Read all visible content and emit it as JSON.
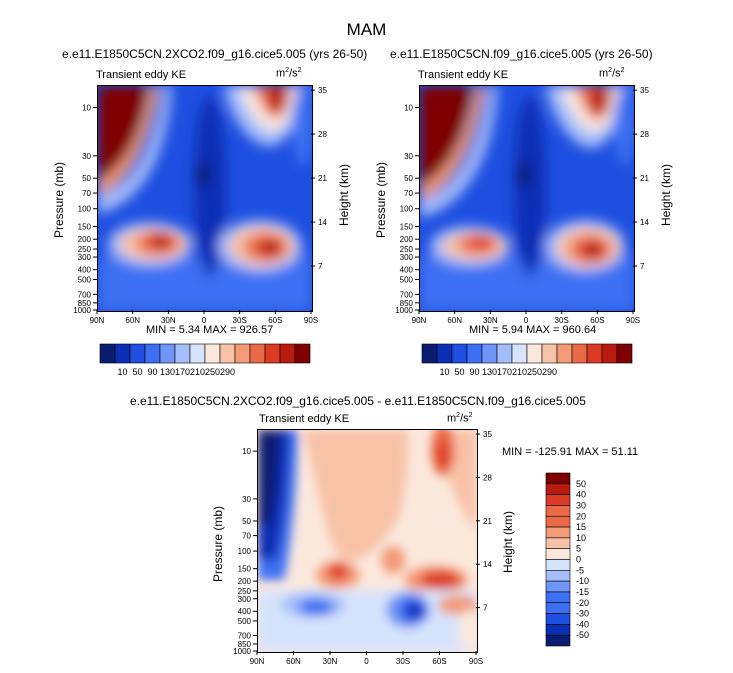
{
  "figure_title": "MAM",
  "colors": {
    "palette11": [
      "#081d6f",
      "#0a2fb5",
      "#1e4fe0",
      "#3c6ff2",
      "#6e95f7",
      "#a5bdfa",
      "#d6e3fc",
      "#fbe8dd",
      "#f8c2a7",
      "#f39a77",
      "#ea6a47",
      "#dd3a23",
      "#b91b0f",
      "#7f0000"
    ]
  },
  "chart_data": [
    {
      "type": "heatmap",
      "subtitle": "e.e11.E1850C5CN.2XCO2.f09_g16.cice5.005 (yrs 26-50)",
      "variable_label": "Transient eddy KE",
      "units_base": "m",
      "units_sup1": "2",
      "units_mid": "/s",
      "units_sup2": "2",
      "ylabel_left": "Pressure (mb)",
      "ylabel_right": "Height (km)",
      "x_ticks": [
        "90N",
        "60N",
        "30N",
        "0",
        "30S",
        "60S",
        "90S"
      ],
      "pressure_ticks": [
        "10",
        "30",
        "50",
        "70",
        "100",
        "150",
        "200",
        "250",
        "300",
        "400",
        "500",
        "700",
        "850",
        "1000"
      ],
      "height_ticks": [
        "35",
        "28",
        "21",
        "14",
        "7"
      ],
      "stats": "MIN =   5.34   MAX = 926.57",
      "min": 5.34,
      "max": 926.57,
      "colorbar_labels": [
        "10",
        "50",
        "90",
        "130",
        "170",
        "210",
        "250",
        "290"
      ]
    },
    {
      "type": "heatmap",
      "subtitle": "e.e11.E1850C5CN.f09_g16.cice5.005 (yrs 26-50)",
      "variable_label": "Transient eddy KE",
      "units_base": "m",
      "units_sup1": "2",
      "units_mid": "/s",
      "units_sup2": "2",
      "ylabel_left": "Pressure (mb)",
      "ylabel_right": "Height (km)",
      "x_ticks": [
        "90N",
        "60N",
        "30N",
        "0",
        "30S",
        "60S",
        "90S"
      ],
      "pressure_ticks": [
        "10",
        "30",
        "50",
        "70",
        "100",
        "150",
        "200",
        "250",
        "300",
        "400",
        "500",
        "700",
        "850",
        "1000"
      ],
      "height_ticks": [
        "35",
        "28",
        "21",
        "14",
        "7"
      ],
      "stats": "MIN =   5.94   MAX = 960.64",
      "min": 5.94,
      "max": 960.64,
      "colorbar_labels": [
        "10",
        "50",
        "90",
        "130",
        "170",
        "210",
        "250",
        "290"
      ]
    },
    {
      "type": "heatmap",
      "subtitle": "e.e11.E1850C5CN.2XCO2.f09_g16.cice5.005 - e.e11.E1850C5CN.f09_g16.cice5.005",
      "variable_label": "Transient eddy KE",
      "units_base": "m",
      "units_sup1": "2",
      "units_mid": "/s",
      "units_sup2": "2",
      "ylabel_left": "Pressure (mb)",
      "ylabel_right": "Height (km)",
      "x_ticks": [
        "90N",
        "60N",
        "30N",
        "0",
        "30S",
        "60S",
        "90S"
      ],
      "pressure_ticks": [
        "10",
        "30",
        "50",
        "70",
        "100",
        "150",
        "200",
        "250",
        "300",
        "400",
        "500",
        "700",
        "850",
        "1000"
      ],
      "height_ticks": [
        "35",
        "28",
        "21",
        "14",
        "7"
      ],
      "stats": "MIN = -125.91   MAX =  51.11",
      "min": -125.91,
      "max": 51.11,
      "colorbar_labels": [
        "50",
        "40",
        "30",
        "20",
        "15",
        "10",
        "5",
        "0",
        "-5",
        "-10",
        "-15",
        "-20",
        "-30",
        "-40",
        "-50"
      ]
    }
  ]
}
